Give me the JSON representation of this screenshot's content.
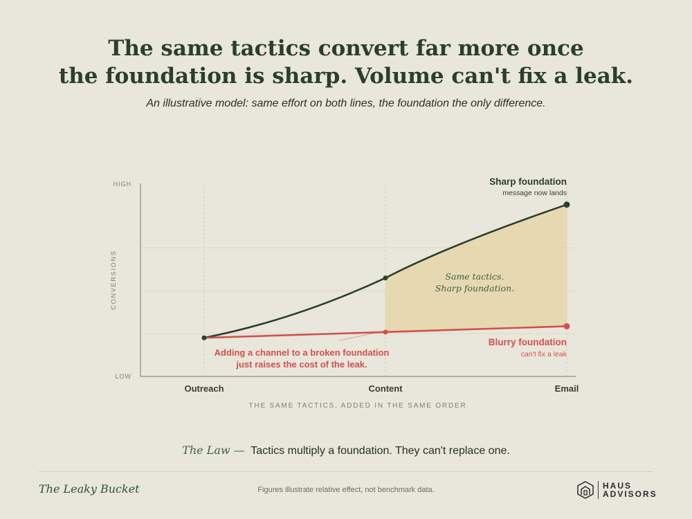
{
  "title_line1": "The same tactics convert far more once",
  "title_line2": "the foundation is sharp. Volume can't fix a leak.",
  "subtitle": "An illustrative model: same effort on both lines, the foundation the only difference.",
  "chart_data": {
    "type": "line",
    "categories": [
      "Outreach",
      "Content",
      "Email"
    ],
    "xlabel": "THE SAME TACTICS, ADDED IN THE SAME ORDER",
    "ylabel": "CONVERSIONS",
    "y_tick_labels": {
      "high": "HIGH",
      "low": "LOW"
    },
    "ylim": [
      0,
      100
    ],
    "grid": true,
    "series": [
      {
        "name": "Sharp foundation",
        "note": "message now lands",
        "color": "#2a3f2c",
        "values": [
          20,
          51,
          89
        ]
      },
      {
        "name": "Blurry foundation",
        "note": "can't fix a leak",
        "color": "#d0504c",
        "values": [
          20,
          23,
          26
        ]
      }
    ],
    "gap_annotation": {
      "line1": "Same tactics.",
      "line2": "Sharp foundation.",
      "fill": "#e5d5a8"
    },
    "callout": {
      "line1": "Adding a channel to a broken foundation",
      "line2": "just raises the cost of the leak."
    }
  },
  "law": {
    "label": "The Law —",
    "text": "Tactics multiply a foundation. They can't replace one."
  },
  "footer": {
    "brand": "The Leaky Bucket",
    "note": "Figures illustrate relative effect, not benchmark data.",
    "logo_line1": "HAUS",
    "logo_line2": "ADVISORS",
    "logo_icon": "house-icon"
  }
}
